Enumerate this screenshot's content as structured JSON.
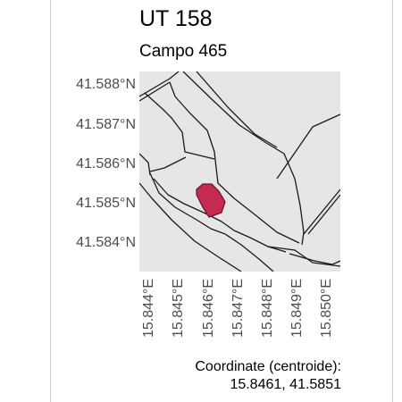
{
  "header": {
    "title": "UT 158",
    "subtitle": "Campo 465"
  },
  "map": {
    "colors": {
      "background": "#e6e6e4",
      "parcel_stroke": "#1a1a1a",
      "highlight_fill": "#c42a52",
      "highlight_stroke": "#6b1030",
      "axis_text": "#4d4d4d"
    },
    "y_axis_labels": [
      "41.588°N",
      "41.587°N",
      "41.586°N",
      "41.585°N",
      "41.584°N"
    ],
    "x_axis_labels": [
      "15.844°E",
      "15.845°E",
      "15.846°E",
      "15.847°E",
      "15.848°E",
      "15.849°E",
      "15.850°E"
    ]
  },
  "caption": {
    "line1": "Coordinate (centroide):",
    "line2": "15.8461, 41.5851"
  }
}
